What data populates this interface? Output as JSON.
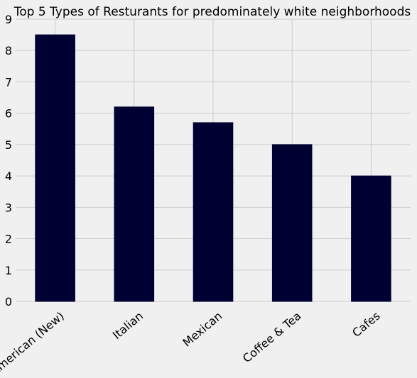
{
  "chart_data": {
    "type": "bar",
    "title": "Top 5 Types of Resturants for predominately white neighborhoods",
    "xlabel": "",
    "ylabel": "",
    "categories": [
      "American (New)",
      "Italian",
      "Mexican",
      "Coffee & Tea",
      "Cafes"
    ],
    "values": [
      8.5,
      6.2,
      5.7,
      5.0,
      4.0
    ],
    "ylim": [
      0,
      9
    ],
    "yticks": [
      "0",
      "1",
      "2",
      "3",
      "4",
      "5",
      "6",
      "7",
      "8",
      "9"
    ],
    "grid": true,
    "legend": "none",
    "colors": {
      "bar": "#000033",
      "background": "#f0f0f0",
      "grid": "#cbcbcb"
    }
  }
}
